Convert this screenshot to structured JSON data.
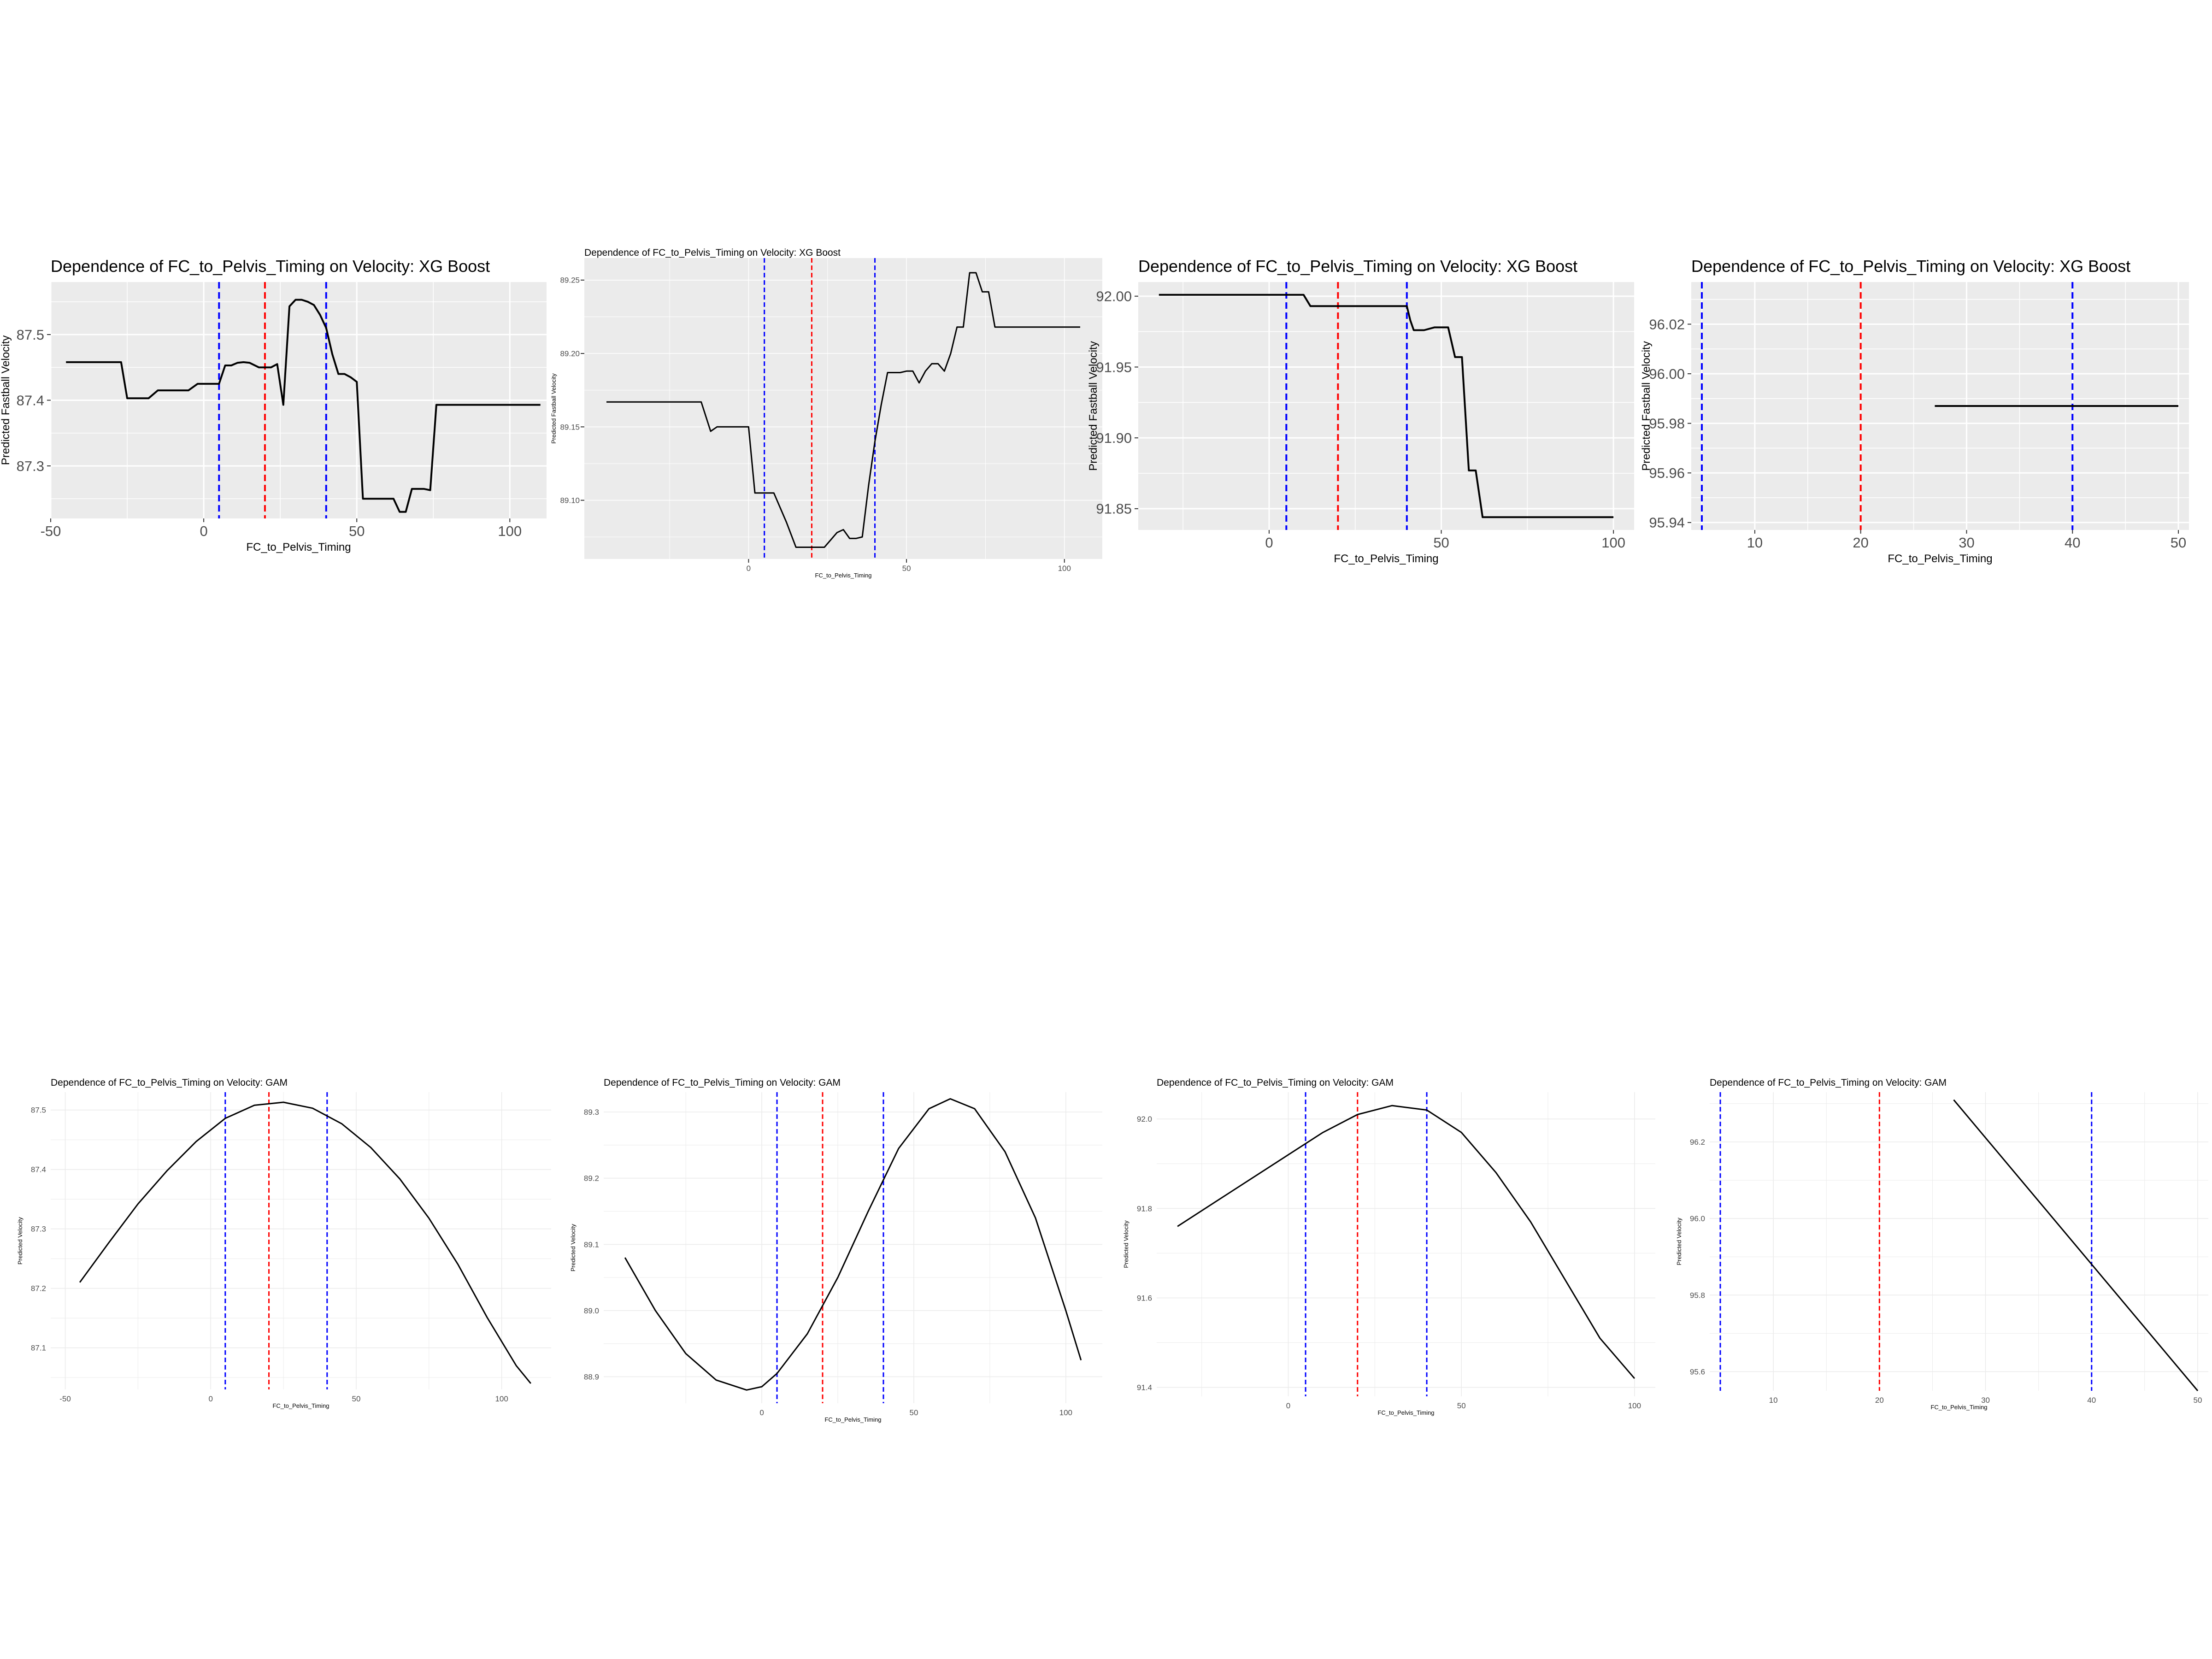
{
  "colors": {
    "panel_bg_xgb": "#ebebeb",
    "grid_major": "#ffffff",
    "panel_bg_gam": "#ffffff",
    "grid_gam": "#ebebeb",
    "line": "#000000",
    "vline_outer": "#0000ff",
    "vline_mid": "#ff0000",
    "tick_text": "#4d4d4d"
  },
  "chart_data": [
    {
      "type": "line",
      "theme": "gray",
      "title": "Dependence of FC_to_Pelvis_Timing on Velocity: XG Boost",
      "xlabel": "FC_to_Pelvis_Timing",
      "ylabel": "Predicted Fastball Velocity",
      "xlim": [
        -50,
        112
      ],
      "ylim": [
        87.22,
        87.58
      ],
      "xticks": [
        -50,
        0,
        50,
        100
      ],
      "xtick_labels": [
        "-50",
        "0",
        "50",
        "100"
      ],
      "yticks": [
        87.3,
        87.4,
        87.5
      ],
      "ytick_labels": [
        "87.3",
        "87.4",
        "87.5"
      ],
      "vlines": [
        {
          "x": 5,
          "color": "blue"
        },
        {
          "x": 20,
          "color": "red"
        },
        {
          "x": 40,
          "color": "blue"
        }
      ],
      "series": [
        {
          "x": [
            -45,
            -27,
            -25,
            -20,
            -18,
            -15,
            -10,
            -5,
            -2,
            0,
            2,
            4,
            5,
            7,
            9,
            11,
            13,
            15,
            18,
            20,
            22,
            24,
            26,
            28,
            30,
            32,
            34,
            36,
            38,
            40,
            42,
            44,
            46,
            48,
            50,
            52,
            54,
            56,
            58,
            60,
            62,
            64,
            66,
            68,
            70,
            72,
            74,
            76,
            78,
            80,
            82,
            84,
            86,
            88,
            110
          ],
          "y": [
            87.458,
            87.458,
            87.403,
            87.403,
            87.403,
            87.415,
            87.415,
            87.415,
            87.425,
            87.425,
            87.425,
            87.425,
            87.425,
            87.453,
            87.453,
            87.457,
            87.458,
            87.457,
            87.45,
            87.45,
            87.45,
            87.455,
            87.393,
            87.543,
            87.553,
            87.553,
            87.55,
            87.545,
            87.53,
            87.51,
            87.47,
            87.44,
            87.44,
            87.435,
            87.428,
            87.25,
            87.25,
            87.25,
            87.25,
            87.25,
            87.25,
            87.23,
            87.23,
            87.265,
            87.265,
            87.265,
            87.263,
            87.393,
            87.393,
            87.393,
            87.393,
            87.393,
            87.393,
            87.393,
            87.393
          ]
        }
      ]
    },
    {
      "type": "line",
      "theme": "gray",
      "title": "Dependence of FC_to_Pelvis_Timing on Velocity: XG Boost",
      "xlabel": "FC_to_Pelvis_Timing",
      "ylabel": "Predicted Fastball Velocity",
      "xlim": [
        -52,
        112
      ],
      "ylim": [
        89.06,
        89.265
      ],
      "xticks": [
        0,
        50,
        100
      ],
      "xtick_labels": [
        "0",
        "50",
        "100"
      ],
      "yticks": [
        89.1,
        89.15,
        89.2,
        89.25
      ],
      "ytick_labels": [
        "89.10",
        "89.15",
        "89.20",
        "89.25"
      ],
      "vlines": [
        {
          "x": 5,
          "color": "blue"
        },
        {
          "x": 20,
          "color": "red"
        },
        {
          "x": 40,
          "color": "blue"
        }
      ],
      "series": [
        {
          "x": [
            -45,
            -15,
            -12,
            -10,
            -5,
            0,
            2,
            8,
            12,
            15,
            22,
            24,
            26,
            28,
            30,
            32,
            34,
            36,
            38,
            40,
            42,
            44,
            46,
            48,
            50,
            52,
            54,
            56,
            58,
            60,
            62,
            64,
            66,
            68,
            70,
            72,
            74,
            76,
            78,
            80,
            82,
            105
          ],
          "y": [
            89.167,
            89.167,
            89.147,
            89.15,
            89.15,
            89.15,
            89.105,
            89.105,
            89.085,
            89.068,
            89.068,
            89.068,
            89.073,
            89.078,
            89.08,
            89.074,
            89.074,
            89.075,
            89.11,
            89.14,
            89.165,
            89.187,
            89.187,
            89.187,
            89.188,
            89.188,
            89.18,
            89.188,
            89.193,
            89.193,
            89.188,
            89.2,
            89.218,
            89.218,
            89.255,
            89.255,
            89.242,
            89.242,
            89.218,
            89.218,
            89.218,
            89.218
          ]
        }
      ]
    },
    {
      "type": "line",
      "theme": "gray",
      "title": "Dependence of FC_to_Pelvis_Timing on Velocity: XG Boost",
      "xlabel": "FC_to_Pelvis_Timing",
      "ylabel": "Predicted Fastball Velocity",
      "xlim": [
        -38,
        106
      ],
      "ylim": [
        91.835,
        92.01
      ],
      "xticks": [
        0,
        50,
        100
      ],
      "xtick_labels": [
        "0",
        "50",
        "100"
      ],
      "yticks": [
        91.85,
        91.9,
        91.95,
        92.0
      ],
      "ytick_labels": [
        "91.85",
        "91.90",
        "91.95",
        "92.00"
      ],
      "vlines": [
        {
          "x": 5,
          "color": "blue"
        },
        {
          "x": 20,
          "color": "red"
        },
        {
          "x": 40,
          "color": "blue"
        }
      ],
      "series": [
        {
          "x": [
            -32,
            8,
            10,
            12,
            15,
            20,
            25,
            30,
            35,
            40,
            41,
            42,
            45,
            48,
            50,
            52,
            54,
            56,
            58,
            60,
            62,
            65,
            70,
            100
          ],
          "y": [
            92.001,
            92.001,
            92.001,
            91.993,
            91.993,
            91.993,
            91.993,
            91.993,
            91.993,
            91.993,
            91.983,
            91.976,
            91.976,
            91.978,
            91.978,
            91.978,
            91.957,
            91.957,
            91.877,
            91.877,
            91.844,
            91.844,
            91.844,
            91.844
          ]
        }
      ]
    },
    {
      "type": "line",
      "theme": "gray",
      "title": "Dependence of FC_to_Pelvis_Timing on Velocity: XG Boost",
      "xlabel": "FC_to_Pelvis_Timing",
      "ylabel": "Predicted Fastball Velocity",
      "xlim": [
        4,
        51
      ],
      "ylim": [
        95.937,
        96.037
      ],
      "xticks": [
        10,
        20,
        30,
        40,
        50
      ],
      "xtick_labels": [
        "10",
        "20",
        "30",
        "40",
        "50"
      ],
      "yticks": [
        95.94,
        95.96,
        95.98,
        96.0,
        96.02
      ],
      "ytick_labels": [
        "95.94",
        "95.96",
        "95.98",
        "96.00",
        "96.02"
      ],
      "vlines": [
        {
          "x": 5,
          "color": "blue"
        },
        {
          "x": 20,
          "color": "red"
        },
        {
          "x": 40,
          "color": "blue"
        }
      ],
      "series": [
        {
          "x": [
            27,
            50
          ],
          "y": [
            95.987,
            95.987
          ]
        }
      ]
    },
    {
      "type": "line",
      "theme": "minimal",
      "title": "Dependence of FC_to_Pelvis_Timing on Velocity: GAM",
      "xlabel": "FC_to_Pelvis_Timing",
      "ylabel": "Predicted Velocity",
      "xlim": [
        -55,
        117
      ],
      "ylim": [
        87.03,
        87.53
      ],
      "xticks": [
        -50,
        0,
        50,
        100
      ],
      "xtick_labels": [
        "-50",
        "0",
        "50",
        "100"
      ],
      "yticks": [
        87.1,
        87.2,
        87.3,
        87.4,
        87.5
      ],
      "ytick_labels": [
        "87.1",
        "87.2",
        "87.3",
        "87.4",
        "87.5"
      ],
      "vlines": [
        {
          "x": 5,
          "color": "blue"
        },
        {
          "x": 20,
          "color": "red"
        },
        {
          "x": 40,
          "color": "blue"
        }
      ],
      "series": [
        {
          "x": [
            -45,
            -35,
            -25,
            -15,
            -5,
            5,
            15,
            25,
            35,
            45,
            55,
            65,
            75,
            85,
            95,
            105,
            110
          ],
          "y": [
            87.21,
            87.277,
            87.342,
            87.398,
            87.447,
            87.486,
            87.508,
            87.513,
            87.503,
            87.477,
            87.437,
            87.384,
            87.318,
            87.24,
            87.151,
            87.07,
            87.04
          ]
        }
      ]
    },
    {
      "type": "line",
      "theme": "minimal",
      "title": "Dependence of FC_to_Pelvis_Timing on Velocity: GAM",
      "xlabel": "FC_to_Pelvis_Timing",
      "ylabel": "Predicted Velocity",
      "xlim": [
        -52,
        112
      ],
      "ylim": [
        88.86,
        89.33
      ],
      "xticks": [
        0,
        50,
        100
      ],
      "xtick_labels": [
        "0",
        "50",
        "100"
      ],
      "yticks": [
        88.9,
        89.0,
        89.1,
        89.2,
        89.3
      ],
      "ytick_labels": [
        "88.9",
        "89.0",
        "89.1",
        "89.2",
        "89.3"
      ],
      "vlines": [
        {
          "x": 5,
          "color": "blue"
        },
        {
          "x": 20,
          "color": "red"
        },
        {
          "x": 40,
          "color": "blue"
        }
      ],
      "series": [
        {
          "x": [
            -45,
            -35,
            -25,
            -15,
            -5,
            0,
            5,
            15,
            25,
            35,
            45,
            55,
            62,
            70,
            80,
            90,
            100,
            105
          ],
          "y": [
            89.08,
            89.0,
            88.935,
            88.895,
            88.88,
            88.885,
            88.905,
            88.965,
            89.05,
            89.15,
            89.245,
            89.305,
            89.32,
            89.305,
            89.24,
            89.14,
            89.0,
            88.925
          ]
        }
      ]
    },
    {
      "type": "line",
      "theme": "minimal",
      "title": "Dependence of FC_to_Pelvis_Timing on Velocity: GAM",
      "xlabel": "FC_to_Pelvis_Timing",
      "ylabel": "Predicted Velocity",
      "xlim": [
        -38,
        106
      ],
      "ylim": [
        91.38,
        92.06
      ],
      "xticks": [
        0,
        50,
        100
      ],
      "xtick_labels": [
        "0",
        "50",
        "100"
      ],
      "yticks": [
        91.4,
        91.6,
        91.8,
        92.0
      ],
      "ytick_labels": [
        "91.4",
        "91.6",
        "91.8",
        "92.0"
      ],
      "vlines": [
        {
          "x": 5,
          "color": "blue"
        },
        {
          "x": 20,
          "color": "red"
        },
        {
          "x": 40,
          "color": "blue"
        }
      ],
      "series": [
        {
          "x": [
            -32,
            -20,
            -10,
            0,
            10,
            20,
            30,
            40,
            50,
            60,
            70,
            80,
            90,
            100
          ],
          "y": [
            91.76,
            91.82,
            91.87,
            91.92,
            91.97,
            92.01,
            92.03,
            92.02,
            91.97,
            91.88,
            91.77,
            91.64,
            91.51,
            91.42
          ]
        }
      ]
    },
    {
      "type": "line",
      "theme": "minimal",
      "title": "Dependence of FC_to_Pelvis_Timing on Velocity: GAM",
      "xlabel": "FC_to_Pelvis_Timing",
      "ylabel": "Predicted Velocity",
      "xlim": [
        4,
        51
      ],
      "ylim": [
        95.55,
        96.33
      ],
      "xticks": [
        10,
        20,
        30,
        40,
        50
      ],
      "xtick_labels": [
        "10",
        "20",
        "30",
        "40",
        "50"
      ],
      "yticks": [
        95.6,
        95.8,
        96.0,
        96.2
      ],
      "ytick_labels": [
        "95.6",
        "95.8",
        "96.0",
        "96.2"
      ],
      "vlines": [
        {
          "x": 5,
          "color": "blue"
        },
        {
          "x": 20,
          "color": "red"
        },
        {
          "x": 40,
          "color": "blue"
        }
      ],
      "series": [
        {
          "x": [
            27,
            50
          ],
          "y": [
            96.31,
            95.55
          ]
        }
      ]
    }
  ]
}
